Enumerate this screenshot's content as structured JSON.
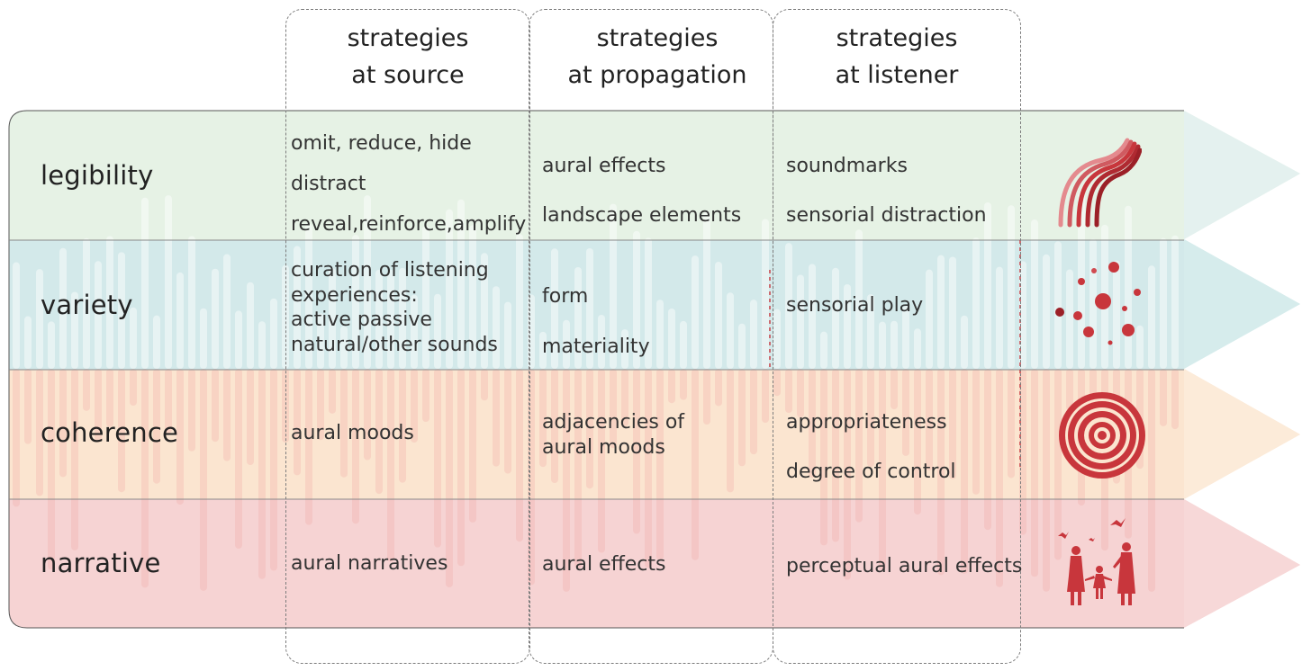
{
  "columns": [
    {
      "line1": "strategies",
      "line2": "at source"
    },
    {
      "line1": "strategies",
      "line2": "at propagation"
    },
    {
      "line1": "strategies",
      "line2": "at listener"
    }
  ],
  "rows": [
    {
      "label": "legibility",
      "source": [
        "omit, reduce, hide",
        "distract",
        "reveal,reinforce,amplify"
      ],
      "propagation": [
        "aural effects",
        "landscape elements"
      ],
      "listener": [
        "soundmarks",
        "sensorial distraction"
      ],
      "icon": "flowing-lines-icon"
    },
    {
      "label": "variety",
      "source": [
        "curation of listening",
        "experiences:",
        "active passive",
        "natural/other sounds"
      ],
      "propagation": [
        "form",
        "materiality"
      ],
      "listener": [
        "sensorial play"
      ],
      "icon": "scattered-dots-icon"
    },
    {
      "label": "coherence",
      "source": [
        "aural moods"
      ],
      "propagation": [
        "adjacencies of",
        "aural moods"
      ],
      "listener": [
        "appropriateness",
        "degree of control"
      ],
      "icon": "concentric-circles-icon"
    },
    {
      "label": "narrative",
      "source": [
        "aural narratives"
      ],
      "propagation": [
        "aural effects"
      ],
      "listener": [
        "perceptual aural effects"
      ],
      "icon": "family-silhouette-icon"
    }
  ],
  "colors": {
    "legibility_band": "#e6f2e5",
    "variety_band": "#d4eaea",
    "coherence_band": "#fbe6d2",
    "narrative_band": "#f6d2d2",
    "accent_red": "#c8363c",
    "dashed_border": "#7c7c7c"
  }
}
